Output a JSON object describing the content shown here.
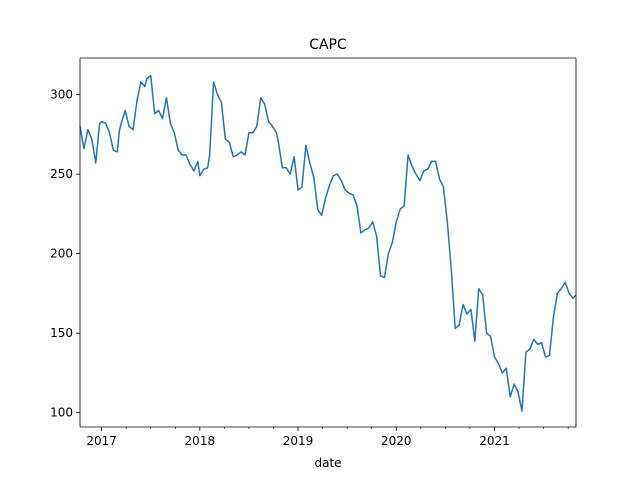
{
  "chart_data": {
    "type": "line",
    "title": "CAPC",
    "xlabel": "date",
    "ylabel": "",
    "xlim": [
      2016.78,
      2021.83
    ],
    "ylim": [
      91,
      323
    ],
    "grid": false,
    "legend": "none",
    "x_ticks": [
      {
        "label": "2017",
        "value": 2017.0
      },
      {
        "label": "2018",
        "value": 2018.0
      },
      {
        "label": "2019",
        "value": 2019.0
      },
      {
        "label": "2020",
        "value": 2020.0
      },
      {
        "label": "2021",
        "value": 2021.0
      }
    ],
    "y_ticks": [
      100,
      150,
      200,
      250,
      300
    ],
    "series": [
      {
        "name": "CAPC",
        "color": "#1f77b4",
        "x": [
          2016.78,
          2016.82,
          2016.86,
          2016.9,
          2016.94,
          2016.98,
          2017.0,
          2017.04,
          2017.08,
          2017.12,
          2017.16,
          2017.18,
          2017.2,
          2017.24,
          2017.28,
          2017.32,
          2017.36,
          2017.4,
          2017.44,
          2017.46,
          2017.5,
          2017.54,
          2017.58,
          2017.62,
          2017.66,
          2017.7,
          2017.74,
          2017.78,
          2017.82,
          2017.86,
          2017.9,
          2017.94,
          2017.98,
          2018.0,
          2018.04,
          2018.08,
          2018.1,
          2018.14,
          2018.18,
          2018.22,
          2018.26,
          2018.3,
          2018.34,
          2018.38,
          2018.42,
          2018.46,
          2018.5,
          2018.54,
          2018.58,
          2018.62,
          2018.66,
          2018.7,
          2018.74,
          2018.78,
          2018.8,
          2018.84,
          2018.88,
          2018.92,
          2018.96,
          2019.0,
          2019.04,
          2019.08,
          2019.12,
          2019.16,
          2019.2,
          2019.24,
          2019.28,
          2019.32,
          2019.36,
          2019.4,
          2019.44,
          2019.48,
          2019.52,
          2019.56,
          2019.6,
          2019.64,
          2019.68,
          2019.72,
          2019.76,
          2019.8,
          2019.84,
          2019.88,
          2019.92,
          2019.96,
          2020.0,
          2020.04,
          2020.08,
          2020.12,
          2020.16,
          2020.2,
          2020.24,
          2020.28,
          2020.32,
          2020.36,
          2020.4,
          2020.44,
          2020.48,
          2020.52,
          2020.56,
          2020.6,
          2020.64,
          2020.68,
          2020.72,
          2020.76,
          2020.8,
          2020.84,
          2020.88,
          2020.92,
          2020.96,
          2021.0,
          2021.04,
          2021.08,
          2021.12,
          2021.16,
          2021.2,
          2021.24,
          2021.28,
          2021.32,
          2021.36,
          2021.4,
          2021.44,
          2021.48,
          2021.52,
          2021.56,
          2021.6,
          2021.64,
          2021.68,
          2021.72,
          2021.76,
          2021.8,
          2021.83
        ],
        "values": [
          280,
          266,
          278,
          272,
          257,
          282,
          283,
          282,
          276,
          265,
          264,
          277,
          282,
          290,
          280,
          278,
          296,
          308,
          305,
          310,
          312,
          288,
          290,
          285,
          298,
          282,
          276,
          265,
          262,
          262,
          256,
          252,
          258,
          249,
          253,
          254,
          262,
          308,
          300,
          295,
          272,
          270,
          261,
          262,
          264,
          262,
          276,
          276,
          280,
          298,
          294,
          283,
          280,
          276,
          270,
          254,
          254,
          250,
          261,
          240,
          242,
          268,
          257,
          248,
          228,
          224,
          235,
          243,
          249,
          250,
          246,
          240,
          238,
          237,
          230,
          213,
          215,
          216,
          220,
          211,
          186,
          185,
          200,
          207,
          220,
          228,
          230,
          262,
          255,
          250,
          246,
          252,
          253,
          258,
          258,
          247,
          242,
          220,
          190,
          153,
          155,
          168,
          162,
          165,
          145,
          178,
          174,
          150,
          148,
          135,
          131,
          125,
          128,
          110,
          118,
          113,
          101,
          138,
          140,
          146,
          143,
          144,
          135,
          136,
          160,
          175,
          178,
          182,
          175,
          172,
          174
        ]
      }
    ]
  }
}
